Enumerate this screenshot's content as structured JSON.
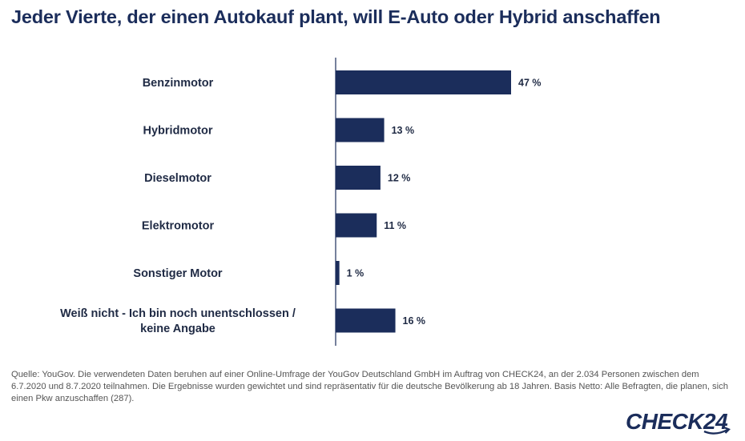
{
  "title": "Jeder Vierte, der einen Autokauf plant, will E-Auto oder Hybrid anschaffen",
  "source": "Quelle: YouGov. Die verwendeten Daten beruhen auf einer Online-Umfrage der YouGov Deutschland GmbH im Auftrag von CHECK24, an der 2.034 Personen zwischen dem 6.7.2020 und 8.7.2020 teilnahmen. Die Ergebnisse wurden gewichtet und sind repräsentativ für die deutsche Bevölkerung ab 18 Jahren. Basis Netto: Alle Befragten, die planen, sich einen Pkw anzuschaffen (287).",
  "logo": {
    "text": "CHECK24",
    "color": "#1b2d5b"
  },
  "colors": {
    "bar": "#1b2d5b",
    "text": "#1f2a44",
    "axis": "#1b2d5b"
  },
  "chart_data": {
    "type": "bar",
    "orientation": "horizontal",
    "categories": [
      "Benzinmotor",
      "Hybridmotor",
      "Dieselmotor",
      "Elektromotor",
      "Sonstiger Motor",
      "Weiß nicht - Ich bin noch unentschlossen / keine Angabe"
    ],
    "category_lines": [
      [
        "Benzinmotor"
      ],
      [
        "Hybridmotor"
      ],
      [
        "Dieselmotor"
      ],
      [
        "Elektromotor"
      ],
      [
        "Sonstiger Motor"
      ],
      [
        "Weiß nicht - Ich bin noch unentschlossen /",
        "keine Angabe"
      ]
    ],
    "values": [
      47,
      13,
      12,
      11,
      1,
      16
    ],
    "value_labels": [
      "47 %",
      "13 %",
      "12 %",
      "11 %",
      "1 %",
      "16 %"
    ],
    "unit": "%",
    "xlim": [
      0,
      100
    ],
    "grid": false,
    "legend": "none"
  }
}
